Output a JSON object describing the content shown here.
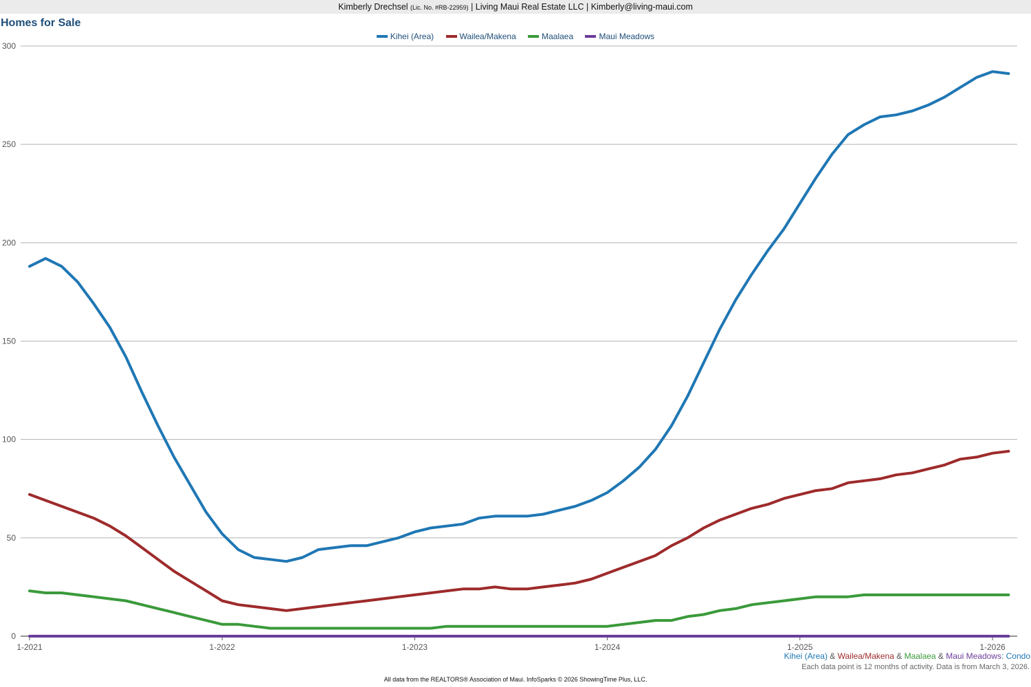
{
  "header": {
    "agent": "Kimberly Drechsel",
    "license": "(Lic. No. #RB-22959)",
    "company": "| Living Maui Real Estate LLC | Kimberly@living-maui.com"
  },
  "chart_data": {
    "type": "line",
    "title": "Homes for Sale",
    "xlabel": "",
    "ylabel": "",
    "ylim": [
      0,
      300
    ],
    "yticks": [
      0,
      50,
      100,
      150,
      200,
      250,
      300
    ],
    "xticks": [
      "1-2021",
      "1-2022",
      "1-2023",
      "1-2024",
      "1-2025",
      "1-2026"
    ],
    "grid": true,
    "legend_position": "top-center",
    "x": [
      "2021-01",
      "2021-02",
      "2021-03",
      "2021-04",
      "2021-05",
      "2021-06",
      "2021-07",
      "2021-08",
      "2021-09",
      "2021-10",
      "2021-11",
      "2021-12",
      "2022-01",
      "2022-02",
      "2022-03",
      "2022-04",
      "2022-05",
      "2022-06",
      "2022-07",
      "2022-08",
      "2022-09",
      "2022-10",
      "2022-11",
      "2022-12",
      "2023-01",
      "2023-02",
      "2023-03",
      "2023-04",
      "2023-05",
      "2023-06",
      "2023-07",
      "2023-08",
      "2023-09",
      "2023-10",
      "2023-11",
      "2023-12",
      "2024-01",
      "2024-02",
      "2024-03",
      "2024-04",
      "2024-05",
      "2024-06",
      "2024-07",
      "2024-08",
      "2024-09",
      "2024-10",
      "2024-11",
      "2024-12",
      "2025-01",
      "2025-02",
      "2025-03",
      "2025-04",
      "2025-05",
      "2025-06",
      "2025-07",
      "2025-08",
      "2025-09",
      "2025-10",
      "2025-11",
      "2025-12",
      "2026-01",
      "2026-02"
    ],
    "series": [
      {
        "name": "Kihei (Area)",
        "color": "#1f77b4",
        "values": [
          188,
          192,
          188,
          180,
          169,
          157,
          142,
          124,
          107,
          91,
          77,
          63,
          52,
          44,
          40,
          39,
          38,
          40,
          44,
          45,
          46,
          46,
          48,
          50,
          53,
          55,
          56,
          57,
          60,
          61,
          61,
          61,
          62,
          64,
          66,
          69,
          73,
          79,
          86,
          95,
          107,
          122,
          139,
          156,
          171,
          184,
          196,
          207,
          220,
          233,
          245,
          255,
          260,
          264,
          265,
          267,
          270,
          274,
          279,
          284,
          287,
          286
        ]
      },
      {
        "name": "Wailea/Makena",
        "color": "#9e2a2b",
        "values": [
          72,
          69,
          66,
          63,
          60,
          56,
          51,
          45,
          39,
          33,
          28,
          23,
          18,
          16,
          15,
          14,
          13,
          14,
          15,
          16,
          17,
          18,
          19,
          20,
          21,
          22,
          23,
          24,
          24,
          25,
          24,
          24,
          25,
          26,
          27,
          29,
          32,
          35,
          38,
          41,
          46,
          50,
          55,
          59,
          62,
          65,
          67,
          70,
          72,
          74,
          75,
          78,
          79,
          80,
          82,
          83,
          85,
          87,
          90,
          91,
          93,
          94
        ]
      },
      {
        "name": "Maalaea",
        "color": "#3a9a3a",
        "values": [
          23,
          22,
          22,
          21,
          20,
          19,
          18,
          16,
          14,
          12,
          10,
          8,
          6,
          6,
          5,
          4,
          4,
          4,
          4,
          4,
          4,
          4,
          4,
          4,
          4,
          4,
          5,
          5,
          5,
          5,
          5,
          5,
          5,
          5,
          5,
          5,
          5,
          6,
          7,
          8,
          8,
          10,
          11,
          13,
          14,
          16,
          17,
          18,
          19,
          20,
          20,
          20,
          21,
          21,
          21,
          21,
          21,
          21,
          21,
          21,
          21,
          21
        ]
      },
      {
        "name": "Maui Meadows",
        "color": "#6a3d9a",
        "values": [
          0,
          0,
          0,
          0,
          0,
          0,
          0,
          0,
          0,
          0,
          0,
          0,
          0,
          0,
          0,
          0,
          0,
          0,
          0,
          0,
          0,
          0,
          0,
          0,
          0,
          0,
          0,
          0,
          0,
          0,
          0,
          0,
          0,
          0,
          0,
          0,
          0,
          0,
          0,
          0,
          0,
          0,
          0,
          0,
          0,
          0,
          0,
          0,
          0,
          0,
          0,
          0,
          0,
          0,
          0,
          0,
          0,
          0,
          0,
          0,
          0,
          0
        ]
      }
    ]
  },
  "footer": {
    "series_labels": [
      "Kihei (Area)",
      "Wailea/Makena",
      "Maalaea",
      "Maui Meadows"
    ],
    "separator": " & ",
    "suffix": ": Condo",
    "note": "Each data point is 12 months of activity. Data is from March 3, 2026.",
    "credit": "All data from the REALTORS® Association of Maui. InfoSparks © 2026 ShowingTime Plus, LLC."
  },
  "colors": {
    "title": "#1f4e79",
    "grid": "#b3b3b3",
    "axis": "#555555",
    "tick_text": "#555555"
  }
}
